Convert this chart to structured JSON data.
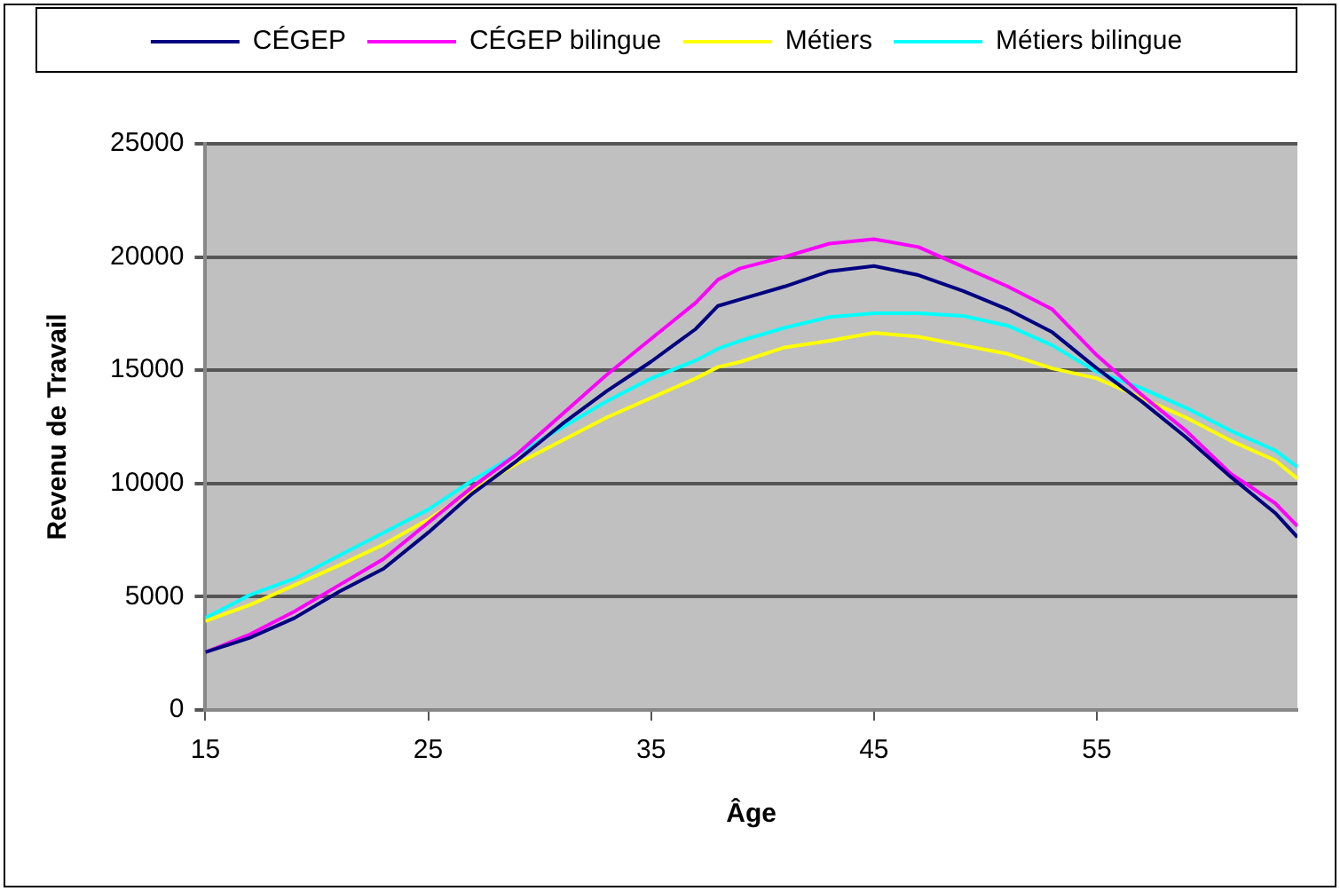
{
  "chart_data": {
    "type": "line",
    "xlabel": "Âge",
    "ylabel": "Revenu de Travail",
    "x": [
      15,
      17,
      19,
      21,
      23,
      25,
      27,
      29,
      31,
      33,
      35,
      37,
      38,
      39,
      41,
      43,
      45,
      47,
      49,
      51,
      53,
      55,
      57,
      59,
      61,
      63,
      64
    ],
    "series": [
      {
        "name": "CÉGEP",
        "color": "#000080",
        "values": [
          2550,
          3190,
          4060,
          5220,
          6240,
          7830,
          9570,
          11020,
          12620,
          14070,
          15380,
          16820,
          17840,
          18130,
          18700,
          19370,
          19600,
          19200,
          18500,
          17690,
          16680,
          15080,
          13630,
          12040,
          10300,
          8700,
          7630
        ]
      },
      {
        "name": "CÉGEP bilingue",
        "color": "#ff00ff",
        "values": [
          2550,
          3340,
          4350,
          5510,
          6670,
          8270,
          9860,
          11310,
          13050,
          14790,
          16390,
          17980,
          19000,
          19500,
          20010,
          20590,
          20790,
          20440,
          19570,
          18700,
          17690,
          15660,
          13920,
          12330,
          10440,
          9130,
          8120
        ]
      },
      {
        "name": "Métiers",
        "color": "#ffff00",
        "values": [
          3920,
          4640,
          5510,
          6380,
          7310,
          8410,
          9720,
          10880,
          11890,
          12910,
          13780,
          14640,
          15140,
          15370,
          16010,
          16300,
          16650,
          16480,
          16100,
          15720,
          15080,
          14640,
          13780,
          12910,
          11890,
          11020,
          10210
        ]
      },
      {
        "name": "Métiers bilingue",
        "color": "#00ffff",
        "values": [
          4060,
          5080,
          5800,
          6820,
          7830,
          8850,
          10150,
          11310,
          12470,
          13630,
          14640,
          15430,
          15950,
          16300,
          16880,
          17350,
          17520,
          17520,
          17400,
          16970,
          16100,
          14930,
          14210,
          13340,
          12330,
          11460,
          10730
        ]
      }
    ],
    "xlim": [
      15,
      64
    ],
    "xticks": [
      15,
      25,
      35,
      45,
      55
    ],
    "ylim": [
      0,
      25000
    ],
    "yticks": [
      0,
      5000,
      10000,
      15000,
      20000,
      25000
    ],
    "grid": "y",
    "legend": "top",
    "marker": "none",
    "line_style": "solid"
  }
}
